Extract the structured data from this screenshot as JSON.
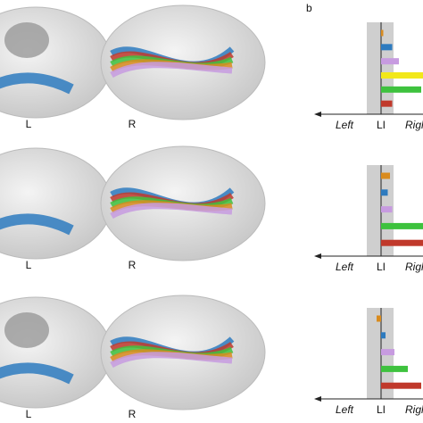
{
  "panel_label": "b",
  "brain_labels": [
    [
      "L",
      "R"
    ],
    [
      "L",
      "R"
    ],
    [
      "L",
      "R"
    ]
  ],
  "chart_data": [
    {
      "type": "bar",
      "orientation": "horizontal",
      "axis_labels": [
        "Left",
        "LI",
        "Right"
      ],
      "categories": [
        null,
        null,
        null,
        null,
        null,
        null
      ],
      "values": [
        0.05,
        0.25,
        0.4,
        1.2,
        0.9,
        0.25
      ],
      "colors": [
        "#d98b1e",
        "#2e7bbf",
        "#c79be0",
        "#f2e81a",
        "#3ec23e",
        "#c0392b"
      ],
      "xlim": [
        -1.5,
        1.5
      ]
    },
    {
      "type": "bar",
      "orientation": "horizontal",
      "axis_labels": [
        "Left",
        "LI",
        "Right"
      ],
      "categories": [
        null,
        null,
        null,
        null,
        null
      ],
      "values": [
        0.2,
        0.15,
        0.25,
        1.0,
        1.0
      ],
      "colors": [
        "#d98b1e",
        "#2e7bbf",
        "#c79be0",
        "#3ec23e",
        "#c0392b"
      ],
      "xlim": [
        -1.5,
        1.5
      ]
    },
    {
      "type": "bar",
      "orientation": "horizontal",
      "axis_labels": [
        "Left",
        "LI",
        "Right"
      ],
      "categories": [
        null,
        null,
        null,
        null,
        null
      ],
      "values": [
        -0.1,
        0.1,
        0.3,
        0.6,
        0.9
      ],
      "colors": [
        "#d98b1e",
        "#2e7bbf",
        "#c79be0",
        "#3ec23e",
        "#c0392b"
      ],
      "xlim": [
        -1.5,
        1.5
      ]
    }
  ]
}
